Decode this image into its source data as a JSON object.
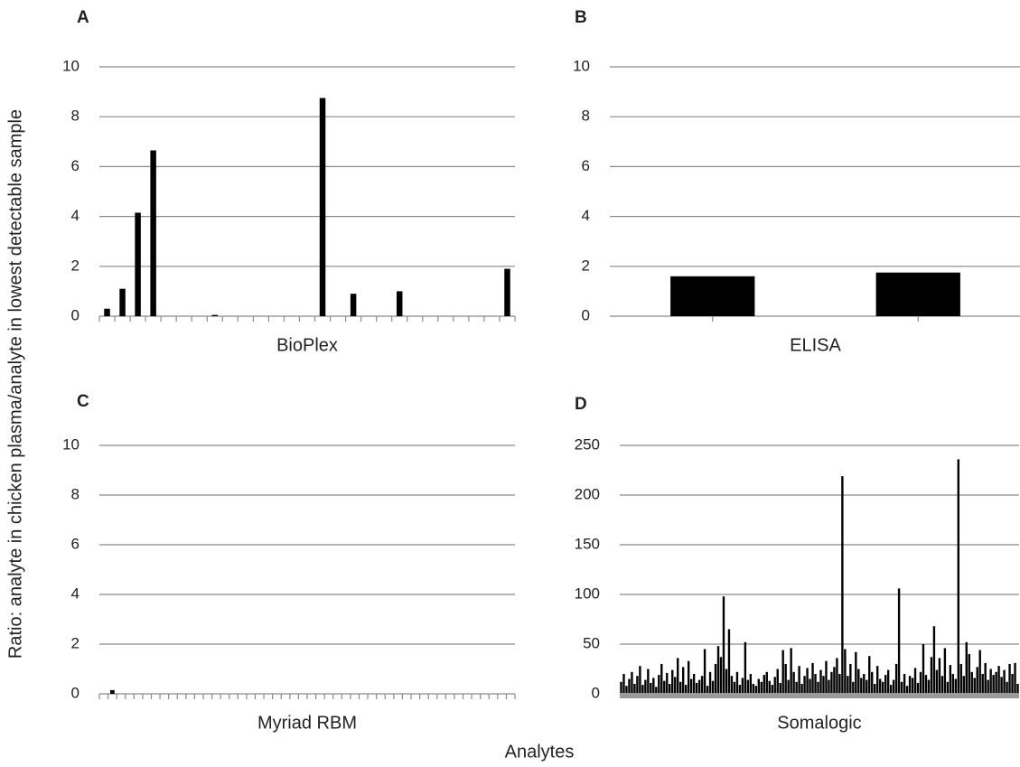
{
  "ylabel": "Ratio: analyte in chicken plasma/analyte in lowest detectable sample",
  "xlabel": "Analytes",
  "chart_data": [
    {
      "type": "bar",
      "panel_label": "A",
      "title": "BioPlex",
      "color": "#000000",
      "grid": true,
      "categories": [
        null,
        null,
        null,
        null,
        null,
        null,
        null,
        null,
        null,
        null,
        null,
        null,
        null,
        null,
        null,
        null,
        null,
        null,
        null,
        null,
        null,
        null,
        null,
        null,
        null,
        null,
        null
      ],
      "values": [
        0.3,
        1.1,
        4.15,
        6.65,
        0,
        0,
        0,
        0.05,
        0,
        0,
        0,
        0,
        0,
        0,
        8.75,
        0,
        0.9,
        0,
        0,
        1.0,
        0,
        0,
        0,
        0,
        0,
        0,
        1.9
      ],
      "ylim": [
        0,
        10
      ],
      "yticks": [
        0,
        2,
        4,
        6,
        8,
        10
      ]
    },
    {
      "type": "bar",
      "panel_label": "B",
      "title": "ELISA",
      "color": "#000000",
      "grid": true,
      "categories": [
        null,
        null
      ],
      "values": [
        1.6,
        1.75
      ],
      "ylim": [
        0,
        10
      ],
      "yticks": [
        0,
        2,
        4,
        6,
        8,
        10
      ]
    },
    {
      "type": "bar",
      "panel_label": "C",
      "title": "Myriad RBM",
      "color": "#000000",
      "grid": true,
      "categories": [
        null,
        null,
        null,
        null,
        null,
        null,
        null,
        null,
        null,
        null,
        null,
        null,
        null,
        null,
        null,
        null,
        null,
        null,
        null,
        null,
        null,
        null,
        null,
        null,
        null,
        null,
        null,
        null,
        null,
        null,
        null,
        null,
        null,
        null,
        null,
        null,
        null,
        null,
        null,
        null,
        null,
        null,
        null,
        null,
        null,
        null,
        null,
        null
      ],
      "values": [
        0,
        0.15,
        0,
        0,
        0,
        0,
        0,
        0,
        0,
        0,
        0,
        0,
        0,
        0,
        0,
        0,
        0,
        0,
        0,
        0,
        0,
        0,
        0,
        0,
        0,
        0,
        0,
        0,
        0,
        0,
        0,
        0,
        0,
        0,
        0,
        0,
        0,
        0,
        0,
        0,
        0,
        0,
        0,
        0,
        0,
        0,
        0,
        0
      ],
      "ylim": [
        0,
        10
      ],
      "yticks": [
        0,
        2,
        4,
        6,
        8,
        10
      ]
    },
    {
      "type": "bar",
      "panel_label": "D",
      "title": "Somalogic",
      "color": "#000000",
      "grid": true,
      "values": [
        12,
        20,
        8,
        15,
        22,
        10,
        18,
        28,
        9,
        14,
        25,
        11,
        16,
        7,
        19,
        30,
        13,
        21,
        10,
        24,
        17,
        36,
        12,
        27,
        9,
        33,
        15,
        20,
        11,
        14,
        18,
        45,
        8,
        22,
        13,
        30,
        48,
        37,
        98,
        25,
        65,
        18,
        12,
        22,
        9,
        16,
        52,
        14,
        20,
        10,
        8,
        15,
        12,
        19,
        22,
        13,
        9,
        17,
        25,
        11,
        44,
        30,
        14,
        46,
        22,
        12,
        28,
        10,
        18,
        26,
        15,
        31,
        20,
        12,
        24,
        18,
        33,
        14,
        22,
        27,
        36,
        20,
        219,
        45,
        18,
        30,
        12,
        42,
        25,
        16,
        20,
        14,
        38,
        22,
        10,
        28,
        15,
        12,
        19,
        24,
        9,
        14,
        30,
        106,
        12,
        20,
        8,
        18,
        16,
        26,
        11,
        22,
        50,
        19,
        14,
        37,
        68,
        24,
        36,
        18,
        46,
        12,
        29,
        20,
        15,
        236,
        30,
        18,
        52,
        40,
        22,
        16,
        27,
        44,
        20,
        31,
        14,
        25,
        19,
        22,
        28,
        17,
        24,
        12,
        30,
        20,
        31,
        10
      ],
      "ylim": [
        0,
        250
      ],
      "yticks": [
        0,
        50,
        100,
        150,
        200,
        250
      ]
    }
  ]
}
